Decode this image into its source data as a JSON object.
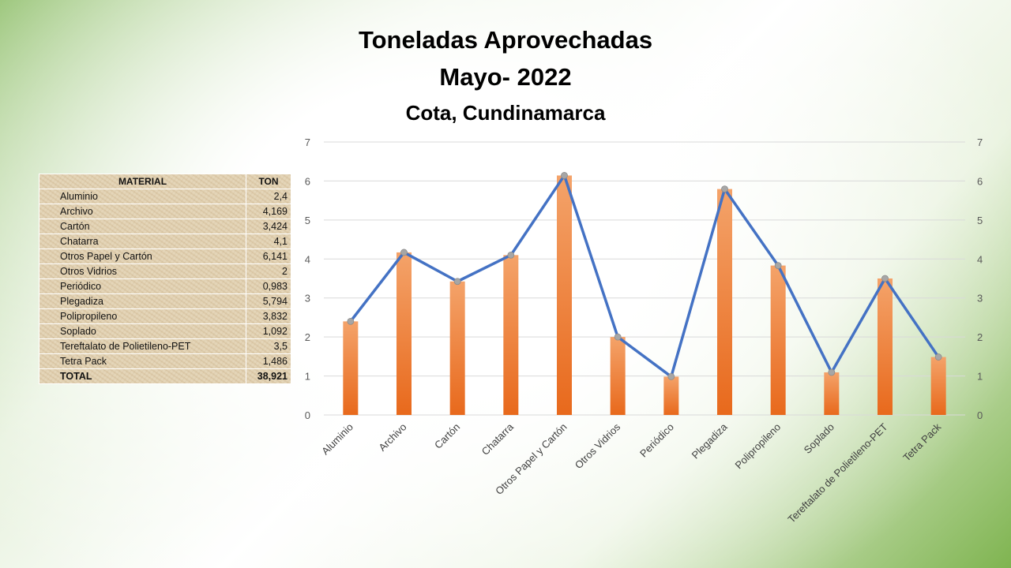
{
  "chart_data": {
    "type": "bar",
    "title": "Toneladas Aprovechadas",
    "subtitle": "Mayo- 2022",
    "location": "Cota, Cundinamarca",
    "categories": [
      "Aluminio",
      "Archivo",
      "Cartón",
      "Chatarra",
      "Otros Papel y Cartón",
      "Otros Vidrios",
      "Periódico",
      "Plegadiza",
      "Polipropileno",
      "Soplado",
      "Tereftalato de Polietileno-PET",
      "Tetra Pack"
    ],
    "series": [
      {
        "name": "TON (barras)",
        "type": "bar",
        "values": [
          2.4,
          4.169,
          3.424,
          4.1,
          6.141,
          2,
          0.983,
          5.794,
          3.832,
          1.092,
          3.5,
          1.486
        ]
      },
      {
        "name": "TON (línea)",
        "type": "line",
        "values": [
          2.4,
          4.169,
          3.424,
          4.1,
          6.141,
          2,
          0.983,
          5.794,
          3.832,
          1.092,
          3.5,
          1.486
        ]
      }
    ],
    "ylim": [
      0,
      7
    ],
    "yticks": [
      "0",
      "1",
      "2",
      "3",
      "4",
      "5",
      "6",
      "7"
    ],
    "xlabel": "",
    "ylabel": "",
    "colors": {
      "bar_top": "#f4a36a",
      "bar_bottom": "#e8691c",
      "line": "#4472c4",
      "marker": "#a6a6a6"
    }
  },
  "table": {
    "headers": [
      "MATERIAL",
      "TON"
    ],
    "rows": [
      [
        "Aluminio",
        "2,4"
      ],
      [
        "Archivo",
        "4,169"
      ],
      [
        "Cartón",
        "3,424"
      ],
      [
        "Chatarra",
        "4,1"
      ],
      [
        "Otros Papel y Cartón",
        "6,141"
      ],
      [
        "Otros Vidrios",
        "2"
      ],
      [
        "Periódico",
        "0,983"
      ],
      [
        "Plegadiza",
        "5,794"
      ],
      [
        "Polipropileno",
        "3,832"
      ],
      [
        "Soplado",
        "1,092"
      ],
      [
        "Tereftalato de Polietileno-PET",
        "3,5"
      ],
      [
        "Tetra Pack",
        "1,486"
      ]
    ],
    "total_label": "TOTAL",
    "total_value": "38,921"
  }
}
